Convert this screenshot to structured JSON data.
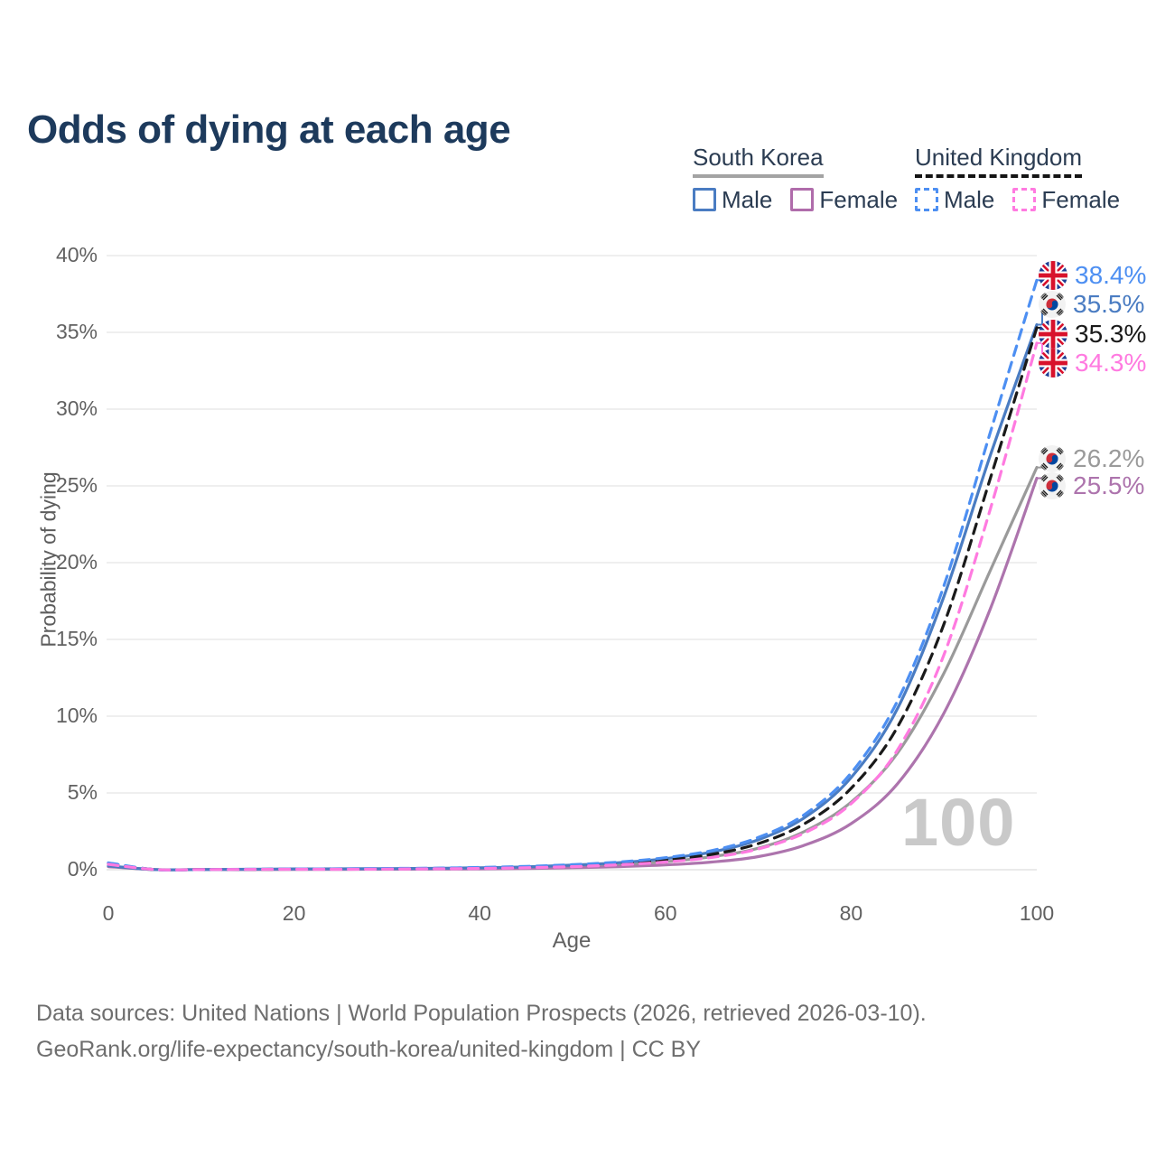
{
  "header": {
    "title": "Odds of dying at each age"
  },
  "legend": {
    "groups": [
      {
        "country": "South Korea",
        "line_style": "solid",
        "line_color": "#a3a3a3",
        "items": [
          {
            "label": "Male",
            "color": "#4a7cc2",
            "style": "solid"
          },
          {
            "label": "Female",
            "color": "#b06cab",
            "style": "solid"
          }
        ]
      },
      {
        "country": "United Kingdom",
        "line_style": "dashed",
        "line_color": "#141414",
        "items": [
          {
            "label": "Male",
            "color": "#4d8ff2",
            "style": "dashed"
          },
          {
            "label": "Female",
            "color": "#ff7ae0",
            "style": "dashed"
          }
        ]
      }
    ]
  },
  "chart_data": {
    "type": "line",
    "title": "Odds of dying at each age",
    "xlabel": "Age",
    "ylabel": "Probability of dying",
    "x_ticks": [
      "0",
      "20",
      "40",
      "60",
      "80",
      "100"
    ],
    "y_ticks": [
      "0%",
      "5%",
      "10%",
      "15%",
      "20%",
      "25%",
      "30%",
      "35%",
      "40%"
    ],
    "xlim": [
      0,
      100
    ],
    "ylim": [
      0,
      40
    ],
    "grid": "horizontal",
    "legend_position": "top-right",
    "watermark": "100",
    "ages": [
      0,
      5,
      10,
      15,
      20,
      25,
      30,
      35,
      40,
      45,
      50,
      55,
      60,
      65,
      70,
      75,
      80,
      85,
      90,
      95,
      100
    ],
    "series": [
      {
        "name": "United Kingdom Male",
        "country": "United Kingdom",
        "sex": "Male",
        "style": "dashed",
        "color": "#4d8ff2",
        "flag": "uk",
        "end_label": "38.4%",
        "end_value": 38.4,
        "values": [
          0.45,
          0.01,
          0.01,
          0.03,
          0.05,
          0.06,
          0.08,
          0.1,
          0.15,
          0.22,
          0.33,
          0.5,
          0.78,
          1.25,
          2.1,
          3.6,
          6.3,
          11.0,
          18.5,
          28.5,
          38.4
        ]
      },
      {
        "name": "South Korea Male",
        "country": "South Korea",
        "sex": "Male",
        "style": "solid",
        "color": "#4a7cc2",
        "flag": "kr",
        "end_label": "35.5%",
        "end_value": 35.5,
        "values": [
          0.25,
          0.01,
          0.01,
          0.03,
          0.05,
          0.06,
          0.07,
          0.09,
          0.13,
          0.19,
          0.3,
          0.46,
          0.72,
          1.15,
          1.95,
          3.4,
          6.0,
          10.5,
          17.8,
          27.0,
          35.5
        ]
      },
      {
        "name": "United Kingdom Both sexes",
        "country": "United Kingdom",
        "sex": "All",
        "style": "dashed",
        "color": "#1a1a1a",
        "flag": "uk",
        "end_label": "35.3%",
        "end_value": 35.3,
        "values": [
          0.4,
          0.01,
          0.01,
          0.02,
          0.04,
          0.05,
          0.06,
          0.08,
          0.12,
          0.18,
          0.27,
          0.41,
          0.64,
          1.0,
          1.7,
          3.0,
          5.3,
          9.3,
          16.0,
          25.5,
          35.3
        ]
      },
      {
        "name": "United Kingdom Female",
        "country": "United Kingdom",
        "sex": "Female",
        "style": "dashed",
        "color": "#ff7ae0",
        "flag": "uk",
        "end_label": "34.3%",
        "end_value": 34.3,
        "values": [
          0.35,
          0.01,
          0.01,
          0.02,
          0.03,
          0.03,
          0.04,
          0.06,
          0.08,
          0.13,
          0.2,
          0.32,
          0.5,
          0.8,
          1.35,
          2.4,
          4.3,
          7.8,
          14.0,
          23.5,
          34.3
        ]
      },
      {
        "name": "South Korea Both sexes",
        "country": "South Korea",
        "sex": "All",
        "style": "solid",
        "color": "#9a9a9a",
        "flag": "kr",
        "end_label": "26.2%",
        "end_value": 26.2,
        "values": [
          0.22,
          0.01,
          0.01,
          0.02,
          0.03,
          0.04,
          0.05,
          0.06,
          0.09,
          0.14,
          0.21,
          0.33,
          0.52,
          0.85,
          1.4,
          2.5,
          4.4,
          7.6,
          12.8,
          19.5,
          26.2
        ]
      },
      {
        "name": "South Korea Female",
        "country": "South Korea",
        "sex": "Female",
        "style": "solid",
        "color": "#ad74ad",
        "flag": "kr",
        "end_label": "25.5%",
        "end_value": 25.5,
        "values": [
          0.2,
          0.01,
          0.01,
          0.01,
          0.02,
          0.02,
          0.03,
          0.04,
          0.05,
          0.08,
          0.13,
          0.2,
          0.31,
          0.5,
          0.85,
          1.6,
          3.0,
          5.6,
          10.2,
          17.0,
          25.5
        ]
      }
    ]
  },
  "footer": {
    "line1": "Data sources: United Nations | World Population Prospects (2026, retrieved 2026-03-10).",
    "line2": "GeoRank.org/life-expectancy/south-korea/united-kingdom | CC BY"
  }
}
